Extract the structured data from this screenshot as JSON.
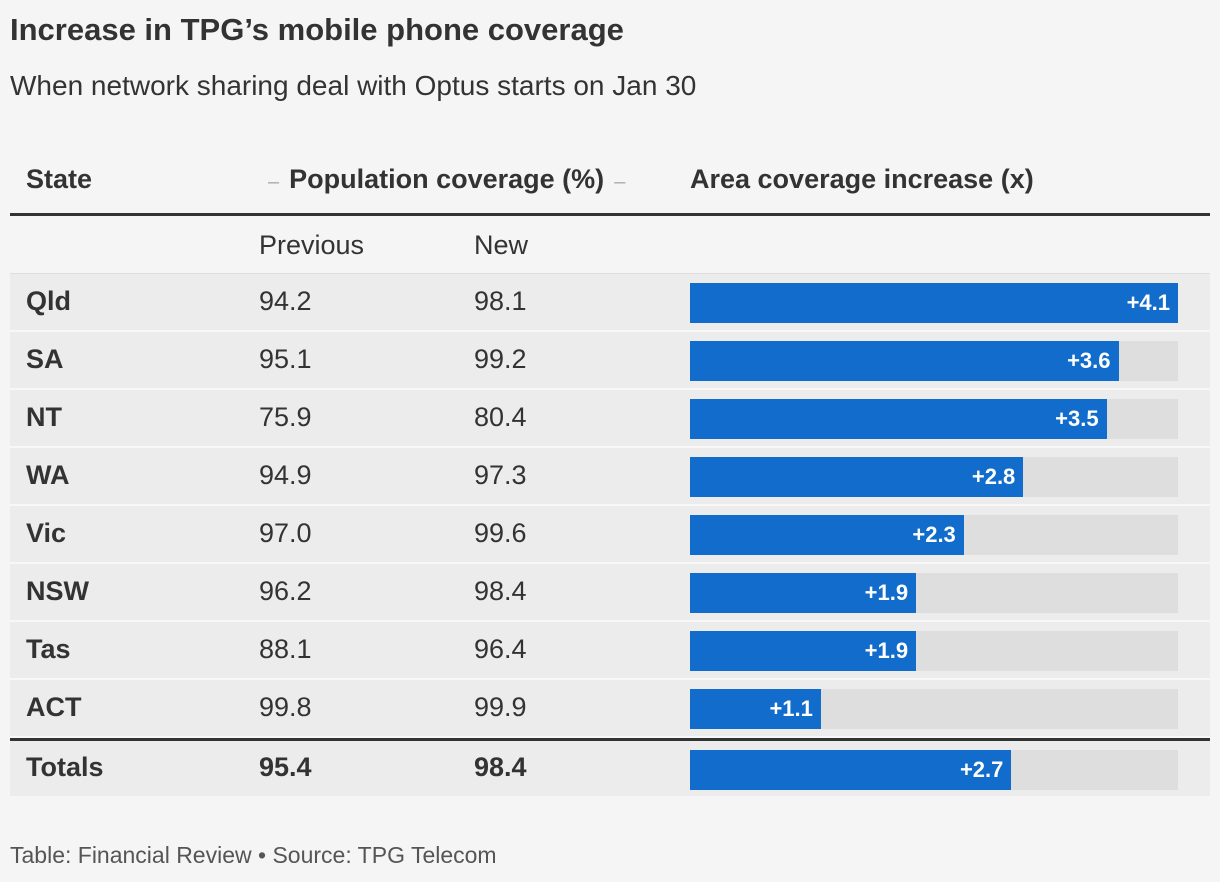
{
  "title": "Increase in TPG’s mobile phone coverage",
  "subtitle": "When network sharing deal with Optus starts on Jan 30",
  "footer": "Table: Financial Review • Source: TPG Telecom",
  "colors": {
    "bar": "#116ccb",
    "track": "#dedede"
  },
  "chart_data": {
    "type": "table",
    "columns": {
      "state": "State",
      "population_group": "Population coverage (%)",
      "area": "Area coverage increase (x)",
      "previous": "Previous",
      "new": "New"
    },
    "bar_max": 4.1,
    "rows": [
      {
        "state": "Qld",
        "previous": "94.2",
        "new": "98.1",
        "increase": 4.1,
        "label": "+4.1"
      },
      {
        "state": "SA",
        "previous": "95.1",
        "new": "99.2",
        "increase": 3.6,
        "label": "+3.6"
      },
      {
        "state": "NT",
        "previous": "75.9",
        "new": "80.4",
        "increase": 3.5,
        "label": "+3.5"
      },
      {
        "state": "WA",
        "previous": "94.9",
        "new": "97.3",
        "increase": 2.8,
        "label": "+2.8"
      },
      {
        "state": "Vic",
        "previous": "97.0",
        "new": "99.6",
        "increase": 2.3,
        "label": "+2.3"
      },
      {
        "state": "NSW",
        "previous": "96.2",
        "new": "98.4",
        "increase": 1.9,
        "label": "+1.9"
      },
      {
        "state": "Tas",
        "previous": "88.1",
        "new": "96.4",
        "increase": 1.9,
        "label": "+1.9"
      },
      {
        "state": "ACT",
        "previous": "99.8",
        "new": "99.9",
        "increase": 1.1,
        "label": "+1.1"
      }
    ],
    "totals": {
      "state": "Totals",
      "previous": "95.4",
      "new": "98.4",
      "increase": 2.7,
      "label": "+2.7"
    }
  }
}
